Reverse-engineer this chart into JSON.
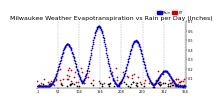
{
  "title": "Milwaukee Weather Evapotranspiration vs Rain per Day (Inches)",
  "title_fontsize": 4.5,
  "background_color": "#ffffff",
  "legend_labels": [
    "Rain",
    "ET"
  ],
  "legend_colors": [
    "#0000cc",
    "#cc0000"
  ],
  "dot_size": 1.5,
  "ylim": [
    0,
    0.7
  ],
  "yticks": [
    0.1,
    0.2,
    0.3,
    0.4,
    0.5,
    0.6,
    0.7
  ],
  "vlines": [
    52,
    104,
    156,
    208,
    260,
    312,
    364
  ],
  "xticks": [
    1,
    52,
    104,
    156,
    208,
    260,
    312,
    364
  ],
  "xtick_labels": [
    "1",
    "52",
    "104",
    "156",
    "208",
    "260",
    "312",
    "364"
  ]
}
